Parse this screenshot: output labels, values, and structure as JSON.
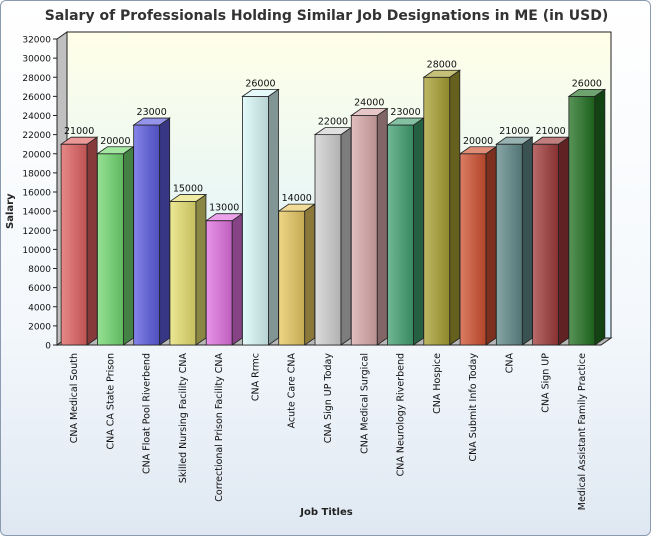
{
  "chart_data": {
    "type": "bar",
    "title": "Salary of Professionals Holding Similar Job Designations in ME (in USD)",
    "xlabel": "Job Titles",
    "ylabel": "Salary",
    "ylim": [
      0,
      32000
    ],
    "ytick_step": 2000,
    "grid": false,
    "legend": "none",
    "categories": [
      "CNA Medical South",
      "CNA CA State Prison",
      "CNA Float Pool Riverbend",
      "Skilled Nursing Facility CNA",
      "Correctional Prison Facility CNA",
      "CNA Rrmc",
      "Acute Care CNA",
      "CNA Sign UP Today",
      "CNA Medical Surgical",
      "CNA Neurology Riverbend",
      "CNA Hospice",
      "CNA Submit Info Today",
      "CNA",
      "CNA Sign UP",
      "Medical Assistant Family Practice"
    ],
    "values": [
      21000,
      20000,
      23000,
      15000,
      13000,
      26000,
      14000,
      22000,
      24000,
      23000,
      28000,
      20000,
      21000,
      21000,
      26000
    ],
    "value_labels": [
      "21000",
      "20000",
      "23000",
      "15000",
      "13000",
      "26000",
      "14000",
      "22000",
      "24000",
      "23000",
      "28000",
      "20000",
      "21000",
      "21000",
      "26000"
    ],
    "colors": [
      "#e06060",
      "#70d870",
      "#5b5be0",
      "#e6e070",
      "#e070e0",
      "#d8f8f8",
      "#e8c860",
      "#d0d0d0",
      "#d8a8a8",
      "#40a070",
      "#a8a030",
      "#d05030",
      "#608888",
      "#a03838",
      "#207020"
    ]
  }
}
